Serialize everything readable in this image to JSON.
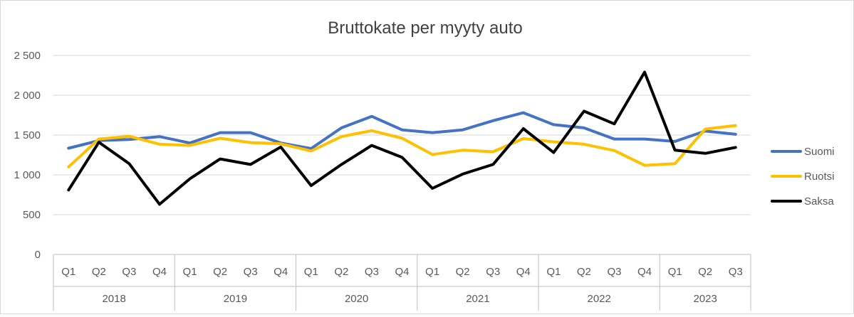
{
  "chart_data": {
    "type": "line",
    "title": "Bruttokate per myyty auto",
    "xlabel": "",
    "ylabel": "",
    "ylim": [
      0,
      2500
    ],
    "yticks": [
      0,
      500,
      1000,
      1500,
      2000,
      2500
    ],
    "ytick_labels": [
      "0",
      "500",
      "1 000",
      "1 500",
      "2 000",
      "2 500"
    ],
    "grid": true,
    "legend_position": "right",
    "years": [
      "2018",
      "2019",
      "2020",
      "2021",
      "2022",
      "2023"
    ],
    "quarters_per_year": [
      4,
      4,
      4,
      4,
      4,
      3
    ],
    "categories": [
      "Q1",
      "Q2",
      "Q3",
      "Q4",
      "Q1",
      "Q2",
      "Q3",
      "Q4",
      "Q1",
      "Q2",
      "Q3",
      "Q4",
      "Q1",
      "Q2",
      "Q3",
      "Q4",
      "Q1",
      "Q2",
      "Q3",
      "Q4",
      "Q1",
      "Q2",
      "Q3"
    ],
    "series": [
      {
        "name": "Suomi",
        "color": "#4472C4",
        "values": [
          1335,
          1430,
          1445,
          1480,
          1400,
          1530,
          1530,
          1400,
          1330,
          1590,
          1735,
          1565,
          1530,
          1565,
          1680,
          1780,
          1630,
          1590,
          1450,
          1450,
          1420,
          1550,
          1510
        ]
      },
      {
        "name": "Ruotsi",
        "color": "#FFC000",
        "values": [
          1100,
          1450,
          1485,
          1385,
          1370,
          1460,
          1405,
          1390,
          1300,
          1480,
          1555,
          1460,
          1255,
          1310,
          1290,
          1455,
          1415,
          1385,
          1305,
          1120,
          1140,
          1575,
          1620
        ]
      },
      {
        "name": "Saksa",
        "color": "#000000",
        "values": [
          810,
          1410,
          1140,
          630,
          950,
          1200,
          1130,
          1350,
          865,
          1130,
          1370,
          1220,
          830,
          1010,
          1130,
          1580,
          1280,
          1800,
          1640,
          2290,
          1310,
          1270,
          1345
        ]
      }
    ]
  }
}
